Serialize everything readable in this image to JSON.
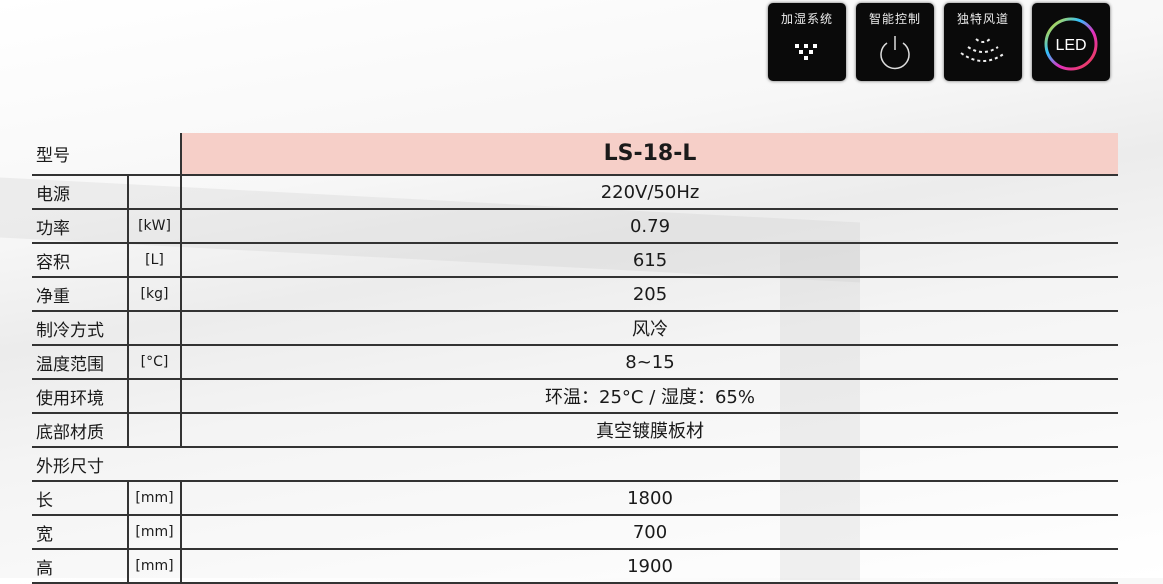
{
  "features": [
    {
      "label": "加湿系统",
      "icon": "humidifier-dots-icon"
    },
    {
      "label": "智能控制",
      "icon": "power-icon"
    },
    {
      "label": "独特风道",
      "icon": "airflow-waves-icon"
    },
    {
      "label": "LED",
      "icon": "led-ring-icon"
    }
  ],
  "spec": {
    "model": {
      "name": "型号",
      "value": "LS-18-L"
    },
    "rows": [
      {
        "name": "电源",
        "unit": "",
        "value": "220V/50Hz"
      },
      {
        "name": "功率",
        "unit": "[kW]",
        "value": "0.79"
      },
      {
        "name": "容积",
        "unit": "[L]",
        "value": "615"
      },
      {
        "name": "净重",
        "unit": "[kg]",
        "value": "205"
      },
      {
        "name": "制冷方式",
        "unit": "",
        "value": "风冷"
      },
      {
        "name": "温度范围",
        "unit": "[°C]",
        "value": "8~15"
      },
      {
        "name": "使用环境",
        "unit": "",
        "value": "环温：25°C / 湿度：65%"
      },
      {
        "name": "底部材质",
        "unit": "",
        "value": "真空镀膜板材"
      }
    ],
    "dimensions_label": "外形尺寸",
    "dimensions": [
      {
        "name": "长",
        "unit": "[mm]",
        "value": "1800"
      },
      {
        "name": "宽",
        "unit": "[mm]",
        "value": "700"
      },
      {
        "name": "高",
        "unit": "[mm]",
        "value": "1900"
      }
    ],
    "header_color": "#f6cfc8"
  }
}
